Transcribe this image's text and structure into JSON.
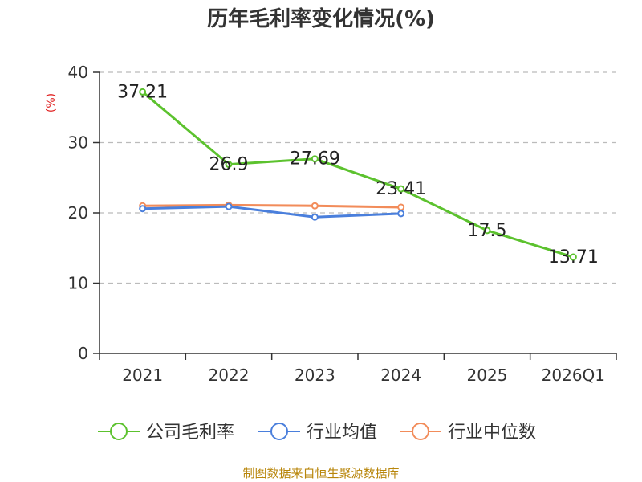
{
  "colors": {
    "company": "#5CC22E",
    "industry_avg": "#4A7FDC",
    "industry_median": "#F28C5A",
    "grid": "#BBBBBB",
    "axis": "#333333",
    "ylabel": "#E02020",
    "source": "#B8860B"
  },
  "chart_data": {
    "type": "line",
    "title": "历年毛利率变化情况(%)",
    "xlabel": "",
    "ylabel": "(%)",
    "ylim": [
      0,
      40
    ],
    "yticks": [
      0,
      10,
      20,
      30,
      40
    ],
    "grid": true,
    "categories": [
      "2021",
      "2022",
      "2023",
      "2024",
      "2025",
      "2026Q1"
    ],
    "series": [
      {
        "name": "公司毛利率",
        "color_key": "company",
        "values": [
          37.21,
          26.9,
          27.69,
          23.41,
          17.5,
          13.71
        ],
        "labels": [
          "37.21",
          "26.9",
          "27.69",
          "23.41",
          "17.5",
          "13.71"
        ]
      },
      {
        "name": "行业均值",
        "color_key": "industry_avg",
        "values": [
          20.6,
          20.9,
          19.4,
          19.9,
          null,
          null
        ]
      },
      {
        "name": "行业中位数",
        "color_key": "industry_median",
        "values": [
          21.0,
          21.1,
          21.0,
          20.8,
          null,
          null
        ]
      }
    ],
    "legend_position": "bottom"
  },
  "source_text": "制图数据来自恒生聚源数据库"
}
